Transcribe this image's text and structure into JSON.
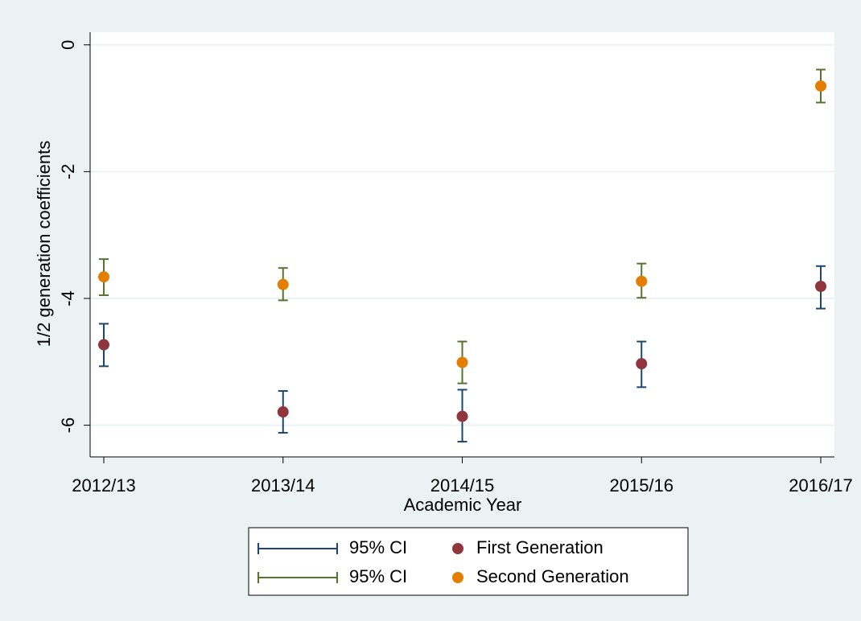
{
  "chart_data": {
    "type": "errorbar",
    "x_label": "Academic Year",
    "y_label": "1/2 generation coefficients",
    "categories": [
      "2012/13",
      "2013/14",
      "2014/15",
      "2015/16",
      "2016/17"
    ],
    "series": [
      {
        "name": "First Generation",
        "color": "#90353b",
        "ci_name": "95% CI",
        "ci_color": "#1a476f",
        "values": [
          -4.73,
          -5.79,
          -5.86,
          -5.03,
          -3.81
        ],
        "ci_low": [
          -5.07,
          -6.12,
          -6.26,
          -5.4,
          -4.16
        ],
        "ci_high": [
          -4.4,
          -5.46,
          -5.44,
          -4.68,
          -3.49
        ]
      },
      {
        "name": "Second Generation",
        "color": "#e37e00",
        "ci_name": "95% CI",
        "ci_color": "#55752f",
        "values": [
          -3.66,
          -3.78,
          -5.01,
          -3.73,
          -0.65
        ],
        "ci_low": [
          -3.95,
          -4.03,
          -5.34,
          -3.99,
          -0.91
        ],
        "ci_high": [
          -3.38,
          -3.52,
          -4.68,
          -3.45,
          -0.39
        ]
      }
    ],
    "ylim": [
      -6.5,
      0.2
    ],
    "yticks": [
      0,
      -2,
      -4,
      -6
    ],
    "grid": true
  }
}
